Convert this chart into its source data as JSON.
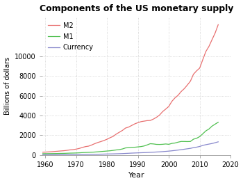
{
  "title": "Components of the US monetary supply",
  "xlabel": "Year",
  "ylabel": "Billions of dollars",
  "legend": [
    "M2",
    "M1",
    "Currency"
  ],
  "line_colors": [
    "#e87070",
    "#50c050",
    "#8888cc"
  ],
  "background_color": "#ffffff",
  "grid_color": "#cccccc",
  "years": [
    1959,
    1960,
    1961,
    1962,
    1963,
    1964,
    1965,
    1966,
    1967,
    1968,
    1969,
    1970,
    1971,
    1972,
    1973,
    1974,
    1975,
    1976,
    1977,
    1978,
    1979,
    1980,
    1981,
    1982,
    1983,
    1984,
    1985,
    1986,
    1987,
    1988,
    1989,
    1990,
    1991,
    1992,
    1993,
    1994,
    1995,
    1996,
    1997,
    1998,
    1999,
    2000,
    2001,
    2002,
    2003,
    2004,
    2005,
    2006,
    2007,
    2008,
    2009,
    2010,
    2011,
    2012,
    2013,
    2014,
    2015,
    2016
  ],
  "M2": [
    286,
    303,
    320,
    338,
    362,
    389,
    416,
    440,
    477,
    524,
    547,
    601,
    672,
    771,
    855,
    902,
    1016,
    1152,
    1270,
    1366,
    1474,
    1600,
    1757,
    1896,
    2127,
    2311,
    2497,
    2734,
    2833,
    2996,
    3159,
    3277,
    3381,
    3432,
    3484,
    3499,
    3636,
    3817,
    4047,
    4393,
    4651,
    4921,
    5433,
    5782,
    6046,
    6423,
    6712,
    7081,
    7477,
    8180,
    8517,
    8796,
    9646,
    10470,
    10987,
    11671,
    12336,
    13186
  ],
  "M1": [
    138,
    140,
    145,
    148,
    153,
    160,
    168,
    172,
    184,
    197,
    204,
    214,
    228,
    249,
    262,
    274,
    287,
    306,
    331,
    357,
    382,
    408,
    436,
    475,
    521,
    552,
    620,
    724,
    750,
    787,
    793,
    825,
    860,
    919,
    1027,
    1150,
    1127,
    1081,
    1073,
    1089,
    1123,
    1088,
    1181,
    1219,
    1306,
    1376,
    1375,
    1366,
    1375,
    1609,
    1696,
    1866,
    2151,
    2446,
    2634,
    2927,
    3126,
    3320
  ],
  "Currency": [
    28,
    29,
    30,
    31,
    33,
    35,
    37,
    39,
    42,
    45,
    48,
    52,
    55,
    59,
    63,
    67,
    72,
    77,
    84,
    91,
    99,
    110,
    116,
    122,
    131,
    139,
    151,
    166,
    182,
    199,
    212,
    225,
    237,
    248,
    261,
    276,
    292,
    311,
    327,
    348,
    373,
    400,
    432,
    468,
    507,
    545,
    590,
    635,
    680,
    750,
    800,
    870,
    975,
    1050,
    1110,
    1170,
    1250,
    1340
  ],
  "xlim": [
    1959,
    2020
  ],
  "ylim": [
    0,
    14000
  ],
  "xticks": [
    1960,
    1970,
    1980,
    1990,
    2000,
    2010,
    2020
  ],
  "yticks": [
    0,
    2000,
    4000,
    6000,
    8000,
    10000
  ]
}
